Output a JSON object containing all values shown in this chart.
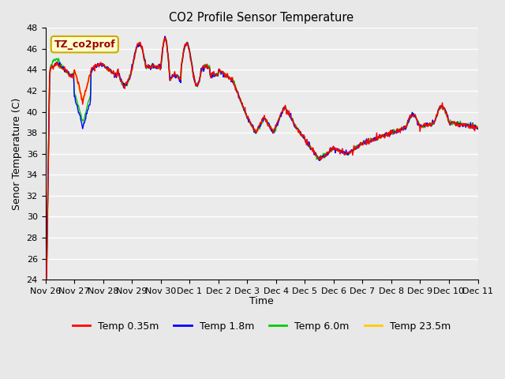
{
  "title": "CO2 Profile Sensor Temperature",
  "ylabel": "Senor Temperature (C)",
  "xlabel": "Time",
  "ylim": [
    24,
    48
  ],
  "yticks": [
    24,
    26,
    28,
    30,
    32,
    34,
    36,
    38,
    40,
    42,
    44,
    46,
    48
  ],
  "xtick_labels": [
    "Nov 26",
    "Nov 27",
    "Nov 28",
    "Nov 29",
    "Nov 30",
    "Dec 1",
    "Dec 2",
    "Dec 3",
    "Dec 4",
    "Dec 5",
    "Dec 6",
    "Dec 7",
    "Dec 8",
    "Dec 9",
    "Dec 10",
    "Dec 11"
  ],
  "legend_labels": [
    "Temp 0.35m",
    "Temp 1.8m",
    "Temp 6.0m",
    "Temp 23.5m"
  ],
  "legend_colors": [
    "#ff0000",
    "#0000ff",
    "#00cc00",
    "#ffcc00"
  ],
  "annotation_text": "TZ_co2prof",
  "annotation_color": "#990000",
  "annotation_bg": "#ffffcc",
  "annotation_border": "#ccaa00",
  "bg_color": "#e8e8e8",
  "plot_bg_color": "#ebebeb"
}
